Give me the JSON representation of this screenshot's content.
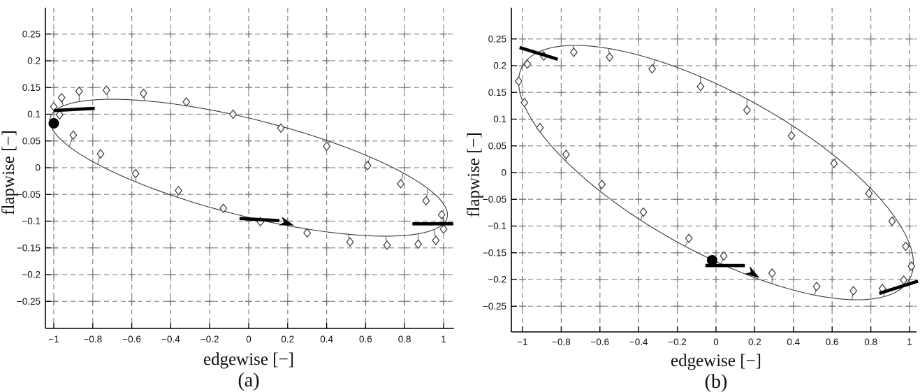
{
  "figure": {
    "background": "#ffffff",
    "description": "Two MATLAB-style phase-portrait plots of blade vibration: flapwise vs edgewise displacement",
    "colors": {
      "grid": "#8f8f8f",
      "axis": "#000000",
      "curve": "#3a3a3a",
      "marker_stroke": "#3a3a3a",
      "marker_fill": "#ffffff",
      "stem": "#555555",
      "annotation": "#000000"
    }
  },
  "chart_data": [
    {
      "type": "line",
      "subtype": "phase-portrait-ellipse-with-markers",
      "caption": "(a)",
      "xlabel": "edgewise [−]",
      "ylabel": "flapwise [−]",
      "xlim": [
        -1.05,
        1.06
      ],
      "ylim": [
        -0.3,
        0.3
      ],
      "grid": "dashed",
      "legend": "none",
      "xtick_values": [
        -1,
        -0.8,
        -0.6,
        -0.4,
        -0.2,
        0,
        0.2,
        0.4,
        0.6,
        0.8,
        1
      ],
      "xtick_labels": [
        "−1",
        "−0.8",
        "−0.6",
        "−0.4",
        "−0.2",
        "0",
        "0.2",
        "0.4",
        "0.6",
        "0.8",
        "1"
      ],
      "ytick_values": [
        0.25,
        0.2,
        0.15,
        0.1,
        0.05,
        0,
        -0.05,
        -0.1,
        -0.15,
        -0.2,
        -0.25
      ],
      "ytick_labels": [
        "0.25",
        "0.2",
        "0.15",
        "0.1",
        "0.05",
        "0",
        "−0.05",
        "−0.1",
        "−0.15",
        "−0.2",
        "−0.25"
      ],
      "ellipse": {
        "x_amplitude": 1.02,
        "y_cos_coeff": -0.088,
        "y_sin_coeff": 0.093
      },
      "markers": [
        [
          -0.97,
          0.099
        ],
        [
          -0.9,
          0.061
        ],
        [
          -0.76,
          0.026
        ],
        [
          -0.58,
          -0.011
        ],
        [
          -0.36,
          -0.043
        ],
        [
          -0.13,
          -0.076
        ],
        [
          0.06,
          -0.101
        ],
        [
          0.3,
          -0.122
        ],
        [
          0.52,
          -0.139
        ],
        [
          0.71,
          -0.145
        ],
        [
          0.87,
          -0.143
        ],
        [
          0.96,
          -0.136
        ],
        [
          1.0,
          -0.115
        ],
        [
          0.99,
          -0.088
        ],
        [
          0.91,
          -0.062
        ],
        [
          0.78,
          -0.03
        ],
        [
          0.61,
          0.004
        ],
        [
          0.4,
          0.04
        ],
        [
          0.165,
          0.074
        ],
        [
          -0.08,
          0.1
        ],
        [
          -0.32,
          0.123
        ],
        [
          -0.54,
          0.139
        ],
        [
          -0.73,
          0.145
        ],
        [
          -0.87,
          0.143
        ],
        [
          -0.96,
          0.131
        ],
        [
          -1.0,
          0.114
        ]
      ],
      "start_dot": [
        -1.0,
        0.083
      ],
      "tangent_segments": [
        [
          [
            -1.0,
            0.107
          ],
          [
            -0.79,
            0.111
          ]
        ],
        [
          [
            0.84,
            -0.105
          ],
          [
            1.05,
            -0.105
          ]
        ],
        [
          [
            -0.047,
            -0.095
          ],
          [
            0.158,
            -0.099
          ]
        ]
      ],
      "arrow_head": {
        "x": 0.233,
        "y": -0.108,
        "angle_deg": 18
      }
    },
    {
      "type": "line",
      "subtype": "phase-portrait-ellipse-with-markers",
      "caption": "(b)",
      "xlabel": "edgewise [−]",
      "ylabel": "flapwise [−]",
      "xlim": [
        -1.07,
        1.04
      ],
      "ylim": [
        -0.3,
        0.3
      ],
      "grid": "dashed",
      "legend": "none",
      "xtick_values": [
        -1,
        -0.8,
        -0.6,
        -0.4,
        -0.2,
        0,
        0.2,
        0.4,
        0.6,
        0.8,
        1
      ],
      "xtick_labels": [
        "−1",
        "−0.8",
        "−0.6",
        "−0.4",
        "−0.2",
        "0",
        "0.2",
        "0.4",
        "0.6",
        "0.8",
        "1"
      ],
      "ytick_values": [
        0.25,
        0.2,
        0.15,
        0.1,
        0.05,
        0,
        -0.05,
        -0.1,
        -0.15,
        -0.2,
        -0.25
      ],
      "ytick_labels": [
        "0.25",
        "0.2",
        "0.15",
        "0.1",
        "0.05",
        "0",
        "−0.05",
        "−0.1",
        "−0.15",
        "−0.2",
        "−0.25"
      ],
      "ellipse": {
        "x_amplitude": 1.02,
        "y_cos_coeff": -0.17,
        "y_sin_coeff": 0.1665
      },
      "markers": [
        [
          -1.02,
          0.171
        ],
        [
          -0.99,
          0.131
        ],
        [
          -0.91,
          0.084
        ],
        [
          -0.775,
          0.034
        ],
        [
          -0.59,
          -0.022
        ],
        [
          -0.375,
          -0.074
        ],
        [
          -0.14,
          -0.123
        ],
        [
          0.04,
          -0.156
        ],
        [
          0.29,
          -0.188
        ],
        [
          0.52,
          -0.213
        ],
        [
          0.71,
          -0.221
        ],
        [
          0.86,
          -0.217
        ],
        [
          0.97,
          -0.201
        ],
        [
          1.01,
          -0.175
        ],
        [
          0.98,
          -0.138
        ],
        [
          0.91,
          -0.091
        ],
        [
          0.79,
          -0.039
        ],
        [
          0.61,
          0.017
        ],
        [
          0.39,
          0.069
        ],
        [
          0.16,
          0.117
        ],
        [
          -0.08,
          0.161
        ],
        [
          -0.33,
          0.194
        ],
        [
          -0.55,
          0.216
        ],
        [
          -0.735,
          0.225
        ],
        [
          -0.89,
          0.218
        ],
        [
          -0.975,
          0.203
        ]
      ],
      "start_dot": [
        -0.02,
        -0.164
      ],
      "tangent_segments": [
        [
          [
            -1.015,
            0.234
          ],
          [
            -0.818,
            0.212
          ]
        ],
        [
          [
            0.844,
            -0.226
          ],
          [
            1.044,
            -0.203
          ]
        ],
        [
          [
            -0.055,
            -0.174
          ],
          [
            0.149,
            -0.174
          ]
        ]
      ],
      "arrow_head": {
        "x": 0.225,
        "y": -0.197,
        "angle_deg": 33
      }
    }
  ]
}
